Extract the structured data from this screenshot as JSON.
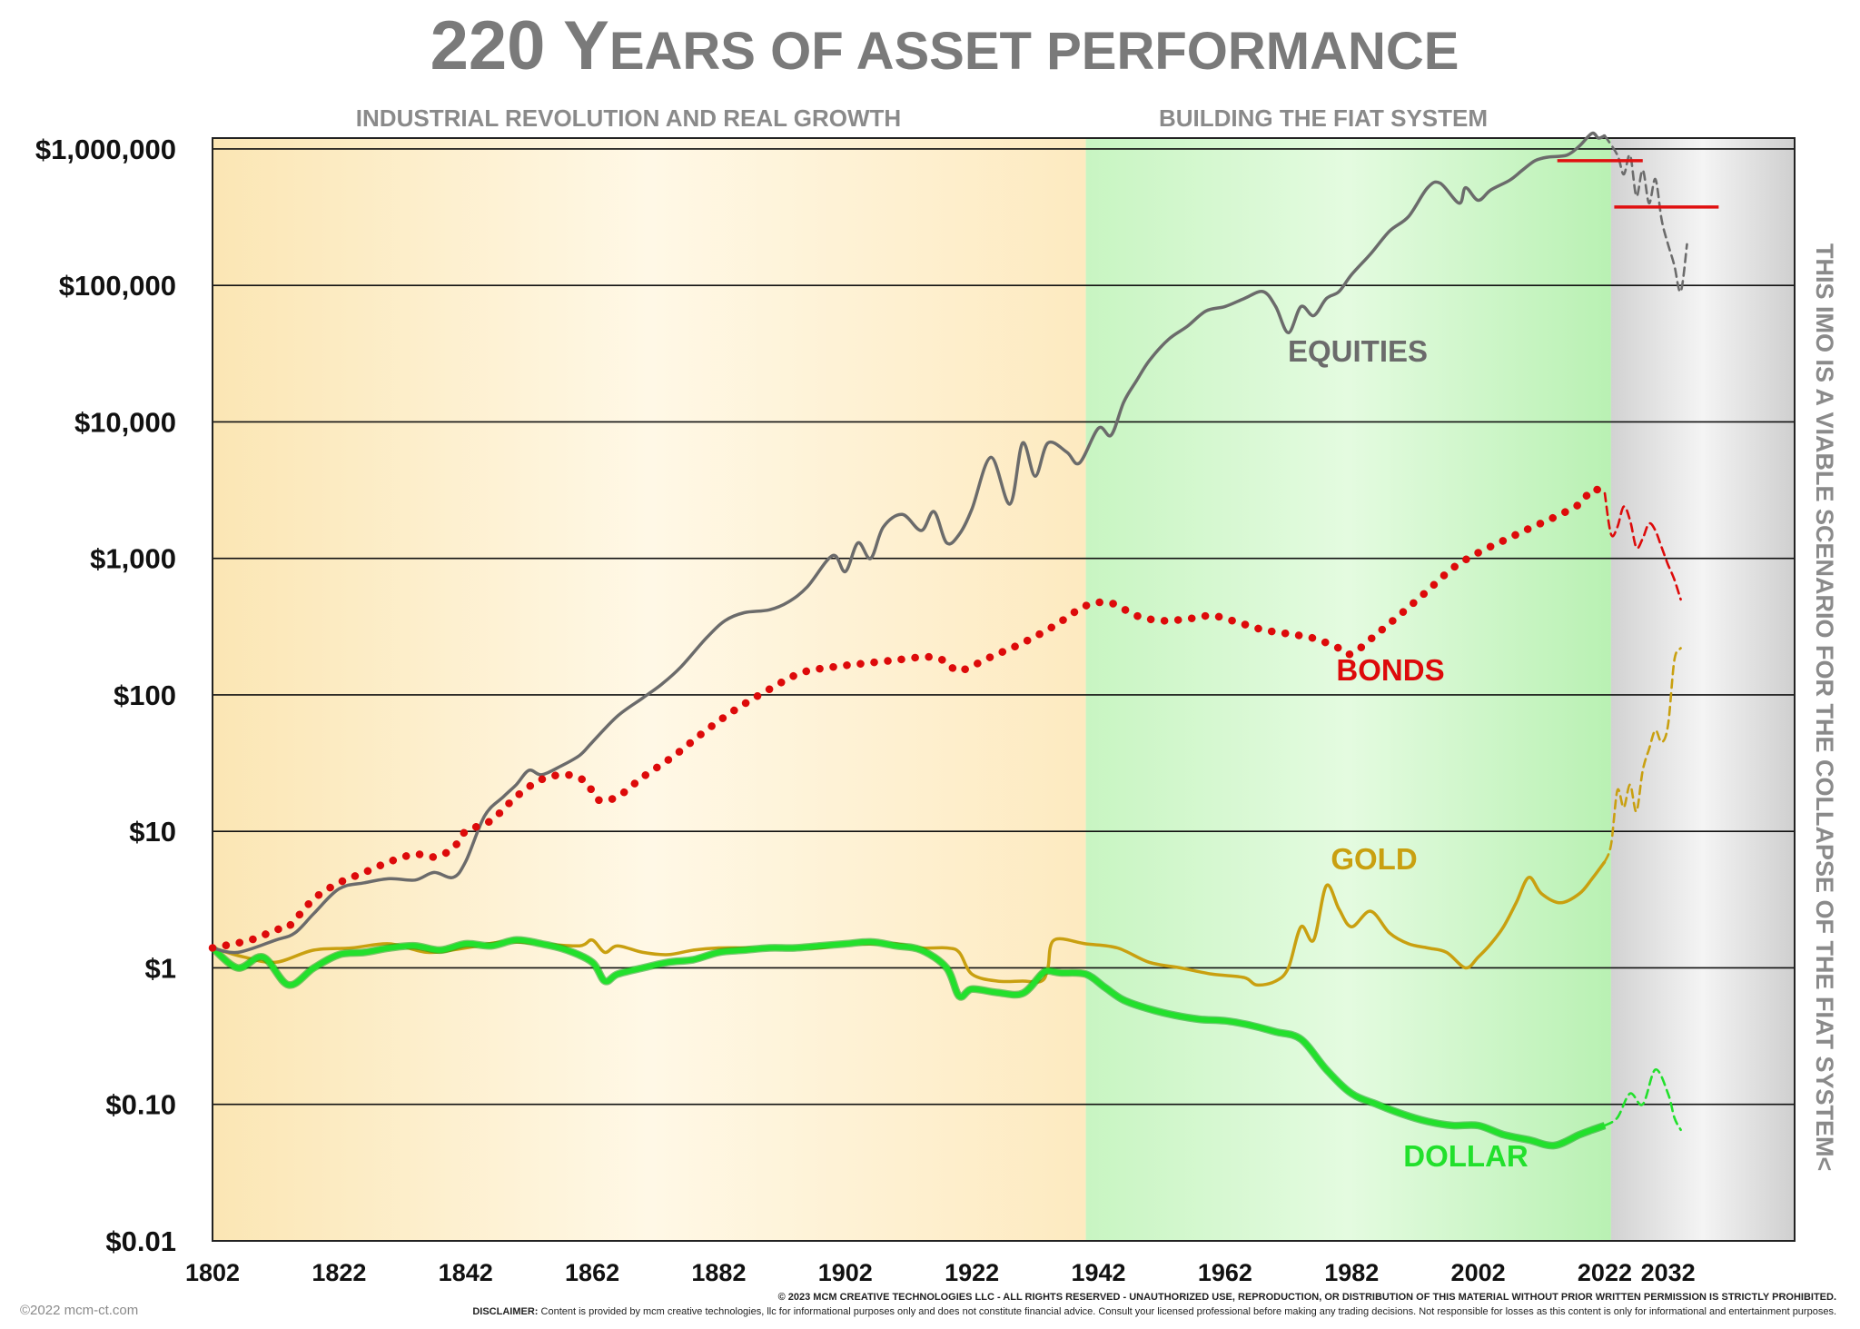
{
  "colors": {
    "equities": "#6b6b6b",
    "bonds": "#dd0a0a",
    "gold": "#c9a010",
    "dollar": "#22e02c",
    "resistance": "#e01010",
    "industrial_bg": "#fdf1cf",
    "fiat_bg": "#cdf5c8",
    "projection_bg": "#d8d8d8"
  },
  "footer": {
    "copyright_left": "©2022 mcm-ct.com",
    "copyright_notice": "© 2023 MCM CREATIVE TECHNOLOGIES LLC - ALL RIGHTS RESERVED - UNAUTHORIZED USE, REPRODUCTION, OR DISTRIBUTION OF THIS MATERIAL WITHOUT PRIOR WRITTEN PERMISSION IS STRICTLY PROHIBITED.",
    "disclaimer_label": "DISCLAIMER:",
    "disclaimer_text": " Content is provided by mcm creative technologies, llc for informational purposes only and does not constitute financial advice. Consult your licensed professional before making any trading decisions. Not responsible for losses as this content is only for informational and entertainment purposes."
  },
  "chart_data": {
    "type": "line",
    "title_parts": [
      "220 Y",
      "EARS OF ASSET PERFORMANCE"
    ],
    "y_scale": "log",
    "ylim": [
      0.01,
      1200000
    ],
    "xlim": [
      1802,
      2052
    ],
    "y_ticks": [
      {
        "value": 1000000,
        "label": "$1,000,000"
      },
      {
        "value": 100000,
        "label": "$100,000"
      },
      {
        "value": 10000,
        "label": "$10,000"
      },
      {
        "value": 1000,
        "label": "$1,000"
      },
      {
        "value": 100,
        "label": "$100"
      },
      {
        "value": 10,
        "label": "$10"
      },
      {
        "value": 1,
        "label": "$1"
      },
      {
        "value": 0.1,
        "label": "$0.10"
      },
      {
        "value": 0.01,
        "label": "$0.01"
      }
    ],
    "x_ticks": [
      1802,
      1822,
      1842,
      1862,
      1882,
      1902,
      1922,
      1942,
      1962,
      1982,
      2002,
      2022,
      2032
    ],
    "regions": [
      {
        "label": "INDUSTRIAL REVOLUTION AND REAL GROWTH",
        "from": 1802,
        "to": 1940
      },
      {
        "label": "BUILDING THE FIAT SYSTEM",
        "from": 1940,
        "to": 2023
      },
      {
        "label": "THIS IMO IS A VIABLE SCENARIO FOR THE COLLAPSE OF THE FIAT SYSTEM<",
        "from": 2023,
        "to": 2052
      }
    ],
    "resistance_lines": [
      {
        "x": [
          2023.5,
          2040
        ],
        "y": [
          375000,
          375000
        ]
      },
      {
        "x": [
          2014.5,
          2028
        ],
        "y": [
          820000,
          820000
        ]
      }
    ],
    "series": [
      {
        "name": "EQUITIES",
        "x": [
          1802,
          1806,
          1812,
          1815,
          1818,
          1822,
          1826,
          1830,
          1834,
          1837,
          1840,
          1842,
          1845,
          1848,
          1850,
          1852,
          1854,
          1857,
          1860,
          1862,
          1866,
          1870,
          1873,
          1876,
          1880,
          1883,
          1886,
          1890,
          1893,
          1896,
          1900,
          1902,
          1904,
          1906,
          1908,
          1911,
          1914,
          1916,
          1918,
          1920,
          1922,
          1925,
          1928,
          1930,
          1932,
          1934,
          1937,
          1939,
          1942,
          1944,
          1946,
          1948,
          1950,
          1953,
          1956,
          1959,
          1962,
          1965,
          1968,
          1970,
          1972,
          1974,
          1976,
          1978,
          1980,
          1982,
          1985,
          1988,
          1991,
          1994,
          1996,
          1999,
          2000,
          2002,
          2004,
          2007,
          2009,
          2011,
          2013,
          2016,
          2018,
          2020,
          2021,
          2022
        ],
        "y": [
          1.4,
          1.3,
          1.6,
          1.8,
          2.5,
          3.8,
          4.2,
          4.5,
          4.4,
          5,
          4.6,
          6,
          13,
          18,
          22,
          28,
          26,
          30,
          36,
          45,
          70,
          95,
          120,
          160,
          260,
          350,
          400,
          420,
          480,
          620,
          1050,
          800,
          1300,
          1000,
          1700,
          2100,
          1600,
          2200,
          1300,
          1500,
          2300,
          5500,
          2500,
          7000,
          4000,
          7000,
          6000,
          5000,
          9000,
          8000,
          14000,
          20000,
          28000,
          40000,
          50000,
          65000,
          70000,
          80000,
          90000,
          70000,
          45000,
          70000,
          60000,
          80000,
          90000,
          120000,
          170000,
          250000,
          320000,
          520000,
          560000,
          400000,
          520000,
          420000,
          500000,
          590000,
          700000,
          820000,
          870000,
          900000,
          1050000,
          1300000,
          1200000,
          1250000
        ]
      },
      {
        "name": "EQUITIES projection",
        "projection": true,
        "x": [
          2022,
          2024,
          2025,
          2026,
          2027,
          2028,
          2029,
          2030,
          2031,
          2032,
          2033,
          2034,
          2035
        ],
        "y": [
          1250000,
          900000,
          650000,
          900000,
          450000,
          700000,
          400000,
          600000,
          300000,
          200000,
          140000,
          90000,
          200000
        ]
      },
      {
        "name": "BONDS",
        "x": [
          1802,
          1808,
          1812,
          1814,
          1818,
          1822,
          1826,
          1830,
          1834,
          1837,
          1840,
          1842,
          1846,
          1850,
          1854,
          1858,
          1861,
          1863,
          1866,
          1870,
          1875,
          1880,
          1885,
          1890,
          1895,
          1900,
          1905,
          1910,
          1915,
          1918,
          1920,
          1925,
          1930,
          1935,
          1940,
          1944,
          1948,
          1952,
          1956,
          1960,
          1964,
          1968,
          1972,
          1976,
          1980,
          1982,
          1986,
          1990,
          1994,
          1998,
          2002,
          2006,
          2010,
          2014,
          2018,
          2020,
          2022
        ],
        "y": [
          1.4,
          1.6,
          1.9,
          2.0,
          3.2,
          4.2,
          5.0,
          6.0,
          6.8,
          6.5,
          7.5,
          10,
          12,
          18,
          24,
          26,
          23,
          17,
          18,
          25,
          36,
          55,
          80,
          110,
          145,
          160,
          170,
          180,
          190,
          175,
          150,
          190,
          240,
          320,
          450,
          470,
          380,
          350,
          360,
          380,
          340,
          300,
          280,
          260,
          220,
          200,
          280,
          400,
          580,
          850,
          1100,
          1350,
          1650,
          2000,
          2500,
          3200,
          3000
        ]
      },
      {
        "name": "BONDS projection",
        "projection": true,
        "x": [
          2022,
          2023,
          2024,
          2025,
          2026,
          2027,
          2028,
          2029,
          2030,
          2031,
          2032,
          2033,
          2034
        ],
        "y": [
          3000,
          1500,
          1700,
          2400,
          1900,
          1200,
          1400,
          1800,
          1600,
          1200,
          900,
          700,
          500
        ]
      },
      {
        "name": "GOLD",
        "x": [
          1802,
          1807,
          1812,
          1818,
          1824,
          1830,
          1836,
          1842,
          1848,
          1854,
          1860,
          1862,
          1864,
          1866,
          1870,
          1874,
          1878,
          1882,
          1886,
          1890,
          1894,
          1898,
          1902,
          1906,
          1910,
          1914,
          1918,
          1920,
          1922,
          1926,
          1930,
          1933,
          1934,
          1935,
          1940,
          1945,
          1950,
          1955,
          1960,
          1965,
          1967,
          1970,
          1972,
          1974,
          1976,
          1978,
          1980,
          1982,
          1985,
          1988,
          1991,
          1994,
          1997,
          2000,
          2002,
          2004,
          2006,
          2008,
          2010,
          2012,
          2015,
          2018,
          2020,
          2022
        ],
        "y": [
          1.4,
          1.2,
          1.1,
          1.35,
          1.4,
          1.5,
          1.3,
          1.4,
          1.55,
          1.5,
          1.45,
          1.6,
          1.3,
          1.45,
          1.3,
          1.25,
          1.35,
          1.4,
          1.4,
          1.4,
          1.4,
          1.4,
          1.5,
          1.5,
          1.5,
          1.4,
          1.4,
          1.3,
          0.9,
          0.8,
          0.8,
          0.8,
          1.0,
          1.6,
          1.5,
          1.4,
          1.1,
          1.0,
          0.9,
          0.85,
          0.75,
          0.8,
          1.0,
          2.0,
          1.6,
          4.0,
          2.7,
          2.0,
          2.6,
          1.8,
          1.5,
          1.4,
          1.3,
          1.0,
          1.2,
          1.5,
          2.0,
          3.0,
          4.6,
          3.5,
          3.0,
          3.5,
          4.5,
          6.0
        ]
      },
      {
        "name": "GOLD projection",
        "projection": true,
        "x": [
          2022,
          2023,
          2024,
          2025,
          2026,
          2027,
          2028,
          2029,
          2030,
          2031,
          2032,
          2033,
          2034
        ],
        "y": [
          6,
          8,
          20,
          15,
          22,
          14,
          28,
          40,
          55,
          45,
          60,
          180,
          220
        ]
      },
      {
        "name": "DOLLAR",
        "x": [
          1802,
          1806,
          1810,
          1814,
          1818,
          1822,
          1826,
          1830,
          1834,
          1838,
          1842,
          1846,
          1850,
          1854,
          1858,
          1862,
          1864,
          1866,
          1870,
          1874,
          1878,
          1882,
          1886,
          1890,
          1894,
          1898,
          1902,
          1906,
          1910,
          1914,
          1918,
          1920,
          1922,
          1926,
          1930,
          1933,
          1934,
          1936,
          1940,
          1943,
          1946,
          1950,
          1954,
          1958,
          1962,
          1966,
          1970,
          1974,
          1978,
          1982,
          1986,
          1990,
          1994,
          1998,
          2002,
          2006,
          2010,
          2014,
          2018,
          2020,
          2022
        ],
        "y": [
          1.4,
          1.0,
          1.2,
          0.75,
          1.0,
          1.25,
          1.3,
          1.4,
          1.45,
          1.35,
          1.5,
          1.45,
          1.6,
          1.5,
          1.35,
          1.1,
          0.8,
          0.9,
          1.0,
          1.1,
          1.15,
          1.3,
          1.35,
          1.4,
          1.4,
          1.45,
          1.5,
          1.55,
          1.45,
          1.35,
          1.0,
          0.62,
          0.7,
          0.66,
          0.65,
          0.9,
          0.95,
          0.92,
          0.9,
          0.72,
          0.58,
          0.5,
          0.45,
          0.42,
          0.41,
          0.38,
          0.34,
          0.3,
          0.18,
          0.12,
          0.1,
          0.085,
          0.075,
          0.07,
          0.07,
          0.06,
          0.055,
          0.05,
          0.06,
          0.065,
          0.07
        ]
      },
      {
        "name": "DOLLAR projection",
        "projection": true,
        "x": [
          2022,
          2024,
          2026,
          2028,
          2030,
          2032,
          2033,
          2034
        ],
        "y": [
          0.07,
          0.08,
          0.12,
          0.1,
          0.18,
          0.12,
          0.08,
          0.065
        ]
      }
    ],
    "series_labels": [
      {
        "text": "EQUITIES",
        "series": "EQUITIES"
      },
      {
        "text": "BONDS",
        "series": "BONDS"
      },
      {
        "text": "GOLD",
        "series": "GOLD"
      },
      {
        "text": "DOLLAR",
        "series": "DOLLAR"
      }
    ]
  }
}
